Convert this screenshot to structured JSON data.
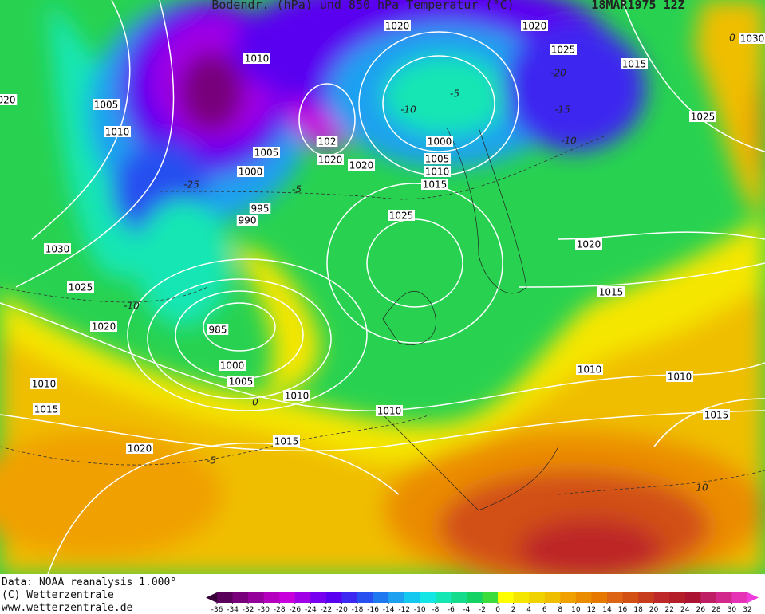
{
  "header": {
    "title": "Bodendr. (hPa) und 850 hPa Temperatur (°C)",
    "datetime": "18MAR1975 12Z"
  },
  "isobar_labels": [
    "1020",
    "1020",
    "1010",
    "1025",
    "1015",
    "1030",
    "020",
    "1005",
    "1010",
    "1025",
    "102",
    "1000",
    "1005",
    "1020",
    "1020",
    "1005",
    "1000",
    "1010",
    "1015",
    "995",
    "990",
    "1025",
    "1030",
    "1020",
    "1025",
    "1015",
    "1020",
    "985",
    "1000",
    "1010",
    "1010",
    "1010",
    "1005",
    "1010",
    "1015",
    "1010",
    "1015",
    "1015",
    "1020"
  ],
  "isotherm_labels": [
    "-5",
    "-10",
    "-15",
    "-10",
    "-20",
    "-25",
    "-5",
    "-10",
    "0",
    "-5",
    "10",
    "0"
  ],
  "footer": {
    "source": "Data: NOAA reanalysis 1.000°",
    "copyright": "(C) Wetterzentrale",
    "website": "www.wetterzentrale.de"
  },
  "colorbar": {
    "ticks": [
      -36,
      -34,
      -32,
      -30,
      -28,
      -26,
      -24,
      -22,
      -20,
      -18,
      -16,
      -14,
      -12,
      -10,
      -8,
      -6,
      -4,
      -2,
      0,
      2,
      4,
      6,
      8,
      10,
      12,
      14,
      16,
      18,
      20,
      22,
      24,
      26,
      28,
      30,
      32
    ],
    "colors": [
      "#5a005a",
      "#78007a",
      "#96009a",
      "#b400be",
      "#c800dc",
      "#a000e6",
      "#7800f0",
      "#5a00f0",
      "#3c28f0",
      "#2850f0",
      "#1e78f0",
      "#1ea0f0",
      "#14c8f0",
      "#14e6e6",
      "#14e6b4",
      "#14dc8c",
      "#14d264",
      "#3cdc3c",
      "#ffff00",
      "#f5e600",
      "#f0d200",
      "#f0be00",
      "#f0a000",
      "#eb8c00",
      "#e67800",
      "#dc6414",
      "#d25014",
      "#c83c1e",
      "#be2828",
      "#b41e28",
      "#aa1432",
      "#be1e64",
      "#d2288c",
      "#e632b4"
    ],
    "under_color": "#3a003a",
    "over_color": "#f03cdc"
  }
}
